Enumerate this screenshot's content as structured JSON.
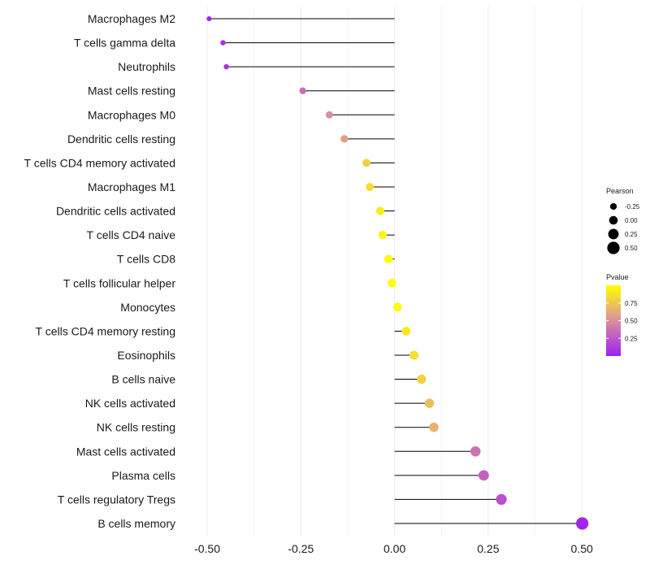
{
  "chart_data": {
    "type": "lollipop",
    "title": "",
    "xlabel": "",
    "ylabel": "",
    "xlim": [
      -0.55,
      0.53
    ],
    "x_ticks": [
      -0.5,
      -0.25,
      0.0,
      0.25,
      0.5
    ],
    "x_tick_labels": [
      "-0.50",
      "-0.25",
      "0.00",
      "0.25",
      "0.50"
    ],
    "grid": true,
    "categories": [
      "Macrophages M2",
      "T cells gamma delta",
      "Neutrophils",
      "Mast cells resting",
      "Macrophages M0",
      "Dendritic cells resting",
      "T cells CD4 memory activated",
      "Macrophages M1",
      "Dendritic cells activated",
      "T cells CD4 naive",
      "T cells CD8",
      "T cells follicular helper",
      "Monocytes",
      "T cells CD4 memory resting",
      "Eosinophils",
      "B cells naive",
      "NK cells activated",
      "NK cells resting",
      "Mast cells activated",
      "Plasma cells",
      "T cells regulatory  Tregs",
      "B cells memory"
    ],
    "pearson": [
      -0.495,
      -0.458,
      -0.449,
      -0.245,
      -0.174,
      -0.134,
      -0.075,
      -0.066,
      -0.038,
      -0.032,
      -0.016,
      -0.007,
      0.008,
      0.031,
      0.052,
      0.072,
      0.093,
      0.105,
      0.216,
      0.238,
      0.285,
      0.501
    ],
    "pvalue": [
      0.01,
      0.05,
      0.07,
      0.35,
      0.5,
      0.58,
      0.8,
      0.85,
      0.92,
      0.95,
      0.99,
      1.0,
      0.99,
      0.9,
      0.86,
      0.8,
      0.72,
      0.66,
      0.38,
      0.3,
      0.22,
      0.02
    ],
    "legend": {
      "size_title": "Pearson",
      "size_labels": [
        "-0.25",
        "0.00",
        "0.25",
        "0.50"
      ],
      "size_values": [
        -0.25,
        0.0,
        0.25,
        0.5
      ],
      "color_title": "Pvalue",
      "color_labels": [
        "0.75",
        "0.50",
        "0.25"
      ],
      "color_values": [
        0.75,
        0.5,
        0.25
      ],
      "color_range": [
        0.0,
        1.0
      ],
      "color_low": "#a020f0",
      "color_mid": "#d98fa0",
      "color_high": "#ffff00",
      "placement": "right"
    }
  }
}
